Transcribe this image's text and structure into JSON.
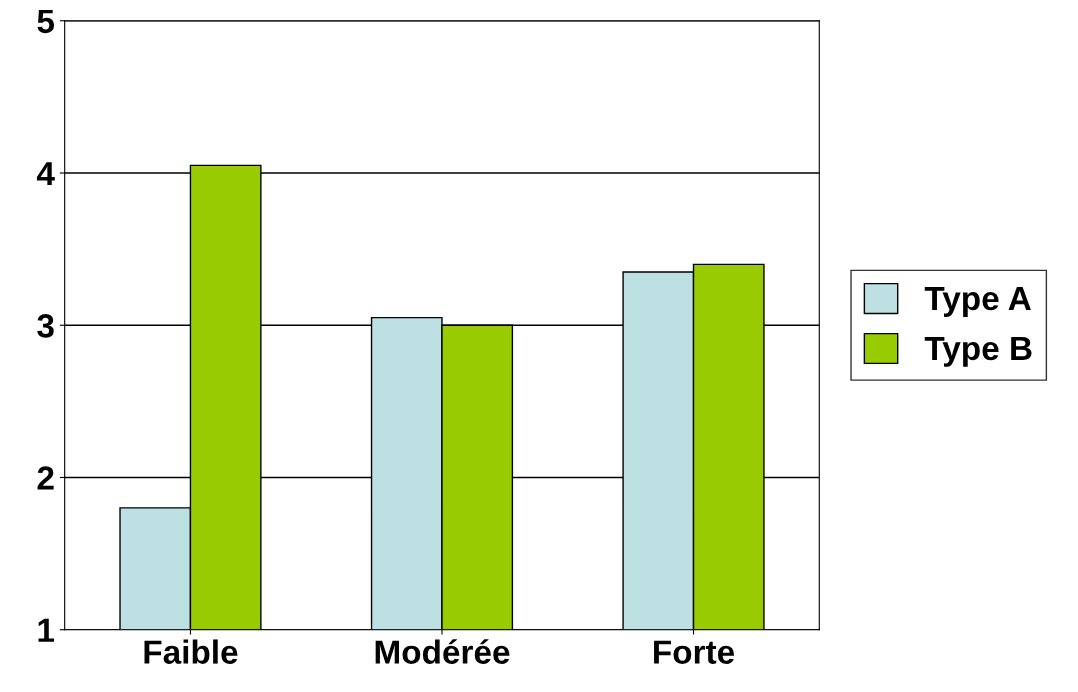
{
  "chart_data": {
    "type": "bar",
    "categories": [
      "Faible",
      "Modérée",
      "Forte"
    ],
    "series": [
      {
        "name": "Type A",
        "color": "#bde0e3",
        "values": [
          1.8,
          3.05,
          3.35
        ]
      },
      {
        "name": "Type B",
        "color": "#99cc00",
        "values": [
          4.05,
          3.0,
          3.4
        ]
      }
    ],
    "ylim": [
      1,
      5
    ],
    "yticks": [
      1,
      2,
      3,
      4,
      5
    ],
    "grid": "y",
    "legend": "right"
  }
}
